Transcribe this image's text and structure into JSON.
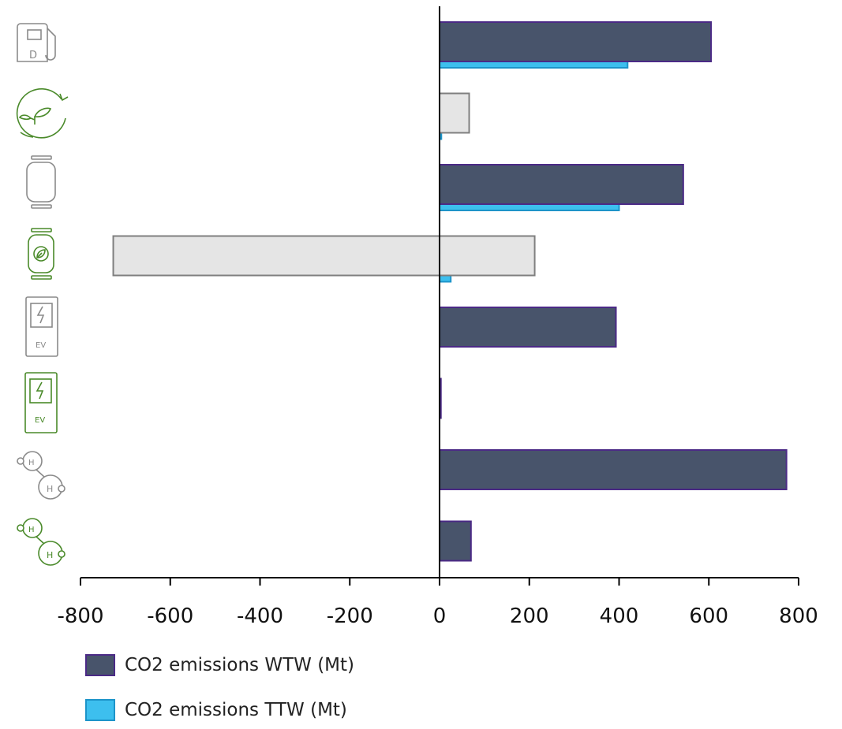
{
  "chart_data": {
    "type": "bar",
    "orientation": "horizontal",
    "categories": [
      "diesel-pump-icon",
      "bio-leaf-recycle-icon",
      "gas-cylinder-icon",
      "bio-gas-cylinder-icon",
      "ev-charger-icon",
      "green-ev-charger-icon",
      "hydrogen-icon",
      "green-hydrogen-icon"
    ],
    "category_icon_colors": [
      "#8a8a8a",
      "#4a8a2a",
      "#8a8a8a",
      "#4a8a2a",
      "#8a8a8a",
      "#4a8a2a",
      "#8a8a8a",
      "#4a8a2a"
    ],
    "series": [
      {
        "name": "CO2 emissions WTW (Mt)",
        "color": "#48546b",
        "border": "#4b2a86",
        "values": [
          605,
          66,
          543,
          212,
          393,
          3,
          773,
          70
        ],
        "negative_values": [
          null,
          null,
          null,
          -727,
          null,
          null,
          null,
          null
        ]
      },
      {
        "name": "CO2 emissions TTW (Mt)",
        "color": "#3dbfee",
        "border": "#1d94c9",
        "values": [
          419,
          4,
          400,
          25,
          0,
          0,
          0,
          0
        ]
      }
    ],
    "highlight_fill": "#e5e5e5",
    "highlight_border": "#7f7f7f",
    "highlight_categories": [
      1,
      3
    ],
    "xlim": [
      -800,
      800
    ],
    "xticks": [
      -800,
      -600,
      -400,
      -200,
      0,
      200,
      400,
      600,
      800
    ],
    "xlabel": "",
    "ylabel": "",
    "title": "",
    "grid": false,
    "legend_position": "bottom-left"
  },
  "legend": {
    "wtw_label": "CO2 emissions WTW (Mt)",
    "ttw_label": "CO2 emissions TTW (Mt)"
  }
}
